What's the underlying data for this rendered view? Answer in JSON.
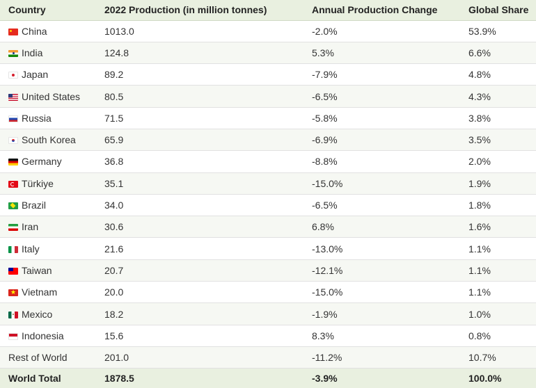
{
  "columns": [
    "Country",
    "2022 Production (in million tonnes)",
    "Annual Production Change",
    "Global Share"
  ],
  "rows": [
    {
      "country": "China",
      "flag": "flag-china",
      "production": "1013.0",
      "change": "-2.0%",
      "share": "53.9%"
    },
    {
      "country": "India",
      "flag": "flag-india",
      "production": "124.8",
      "change": "5.3%",
      "share": "6.6%"
    },
    {
      "country": "Japan",
      "flag": "flag-japan",
      "production": "89.2",
      "change": "-7.9%",
      "share": "4.8%"
    },
    {
      "country": "United States",
      "flag": "flag-us",
      "production": "80.5",
      "change": "-6.5%",
      "share": "4.3%"
    },
    {
      "country": "Russia",
      "flag": "flag-russia",
      "production": "71.5",
      "change": "-5.8%",
      "share": "3.8%"
    },
    {
      "country": "South Korea",
      "flag": "flag-korea",
      "production": "65.9",
      "change": "-6.9%",
      "share": "3.5%"
    },
    {
      "country": "Germany",
      "flag": "flag-germany",
      "production": "36.8",
      "change": "-8.8%",
      "share": "2.0%"
    },
    {
      "country": "Türkiye",
      "flag": "flag-turkiye",
      "production": "35.1",
      "change": "-15.0%",
      "share": "1.9%"
    },
    {
      "country": "Brazil",
      "flag": "flag-brazil",
      "production": "34.0",
      "change": "-6.5%",
      "share": "1.8%"
    },
    {
      "country": "Iran",
      "flag": "flag-iran",
      "production": "30.6",
      "change": "6.8%",
      "share": "1.6%"
    },
    {
      "country": "Italy",
      "flag": "flag-italy",
      "production": "21.6",
      "change": "-13.0%",
      "share": "1.1%"
    },
    {
      "country": "Taiwan",
      "flag": "flag-taiwan",
      "production": "20.7",
      "change": "-12.1%",
      "share": "1.1%"
    },
    {
      "country": "Vietnam",
      "flag": "flag-vietnam",
      "production": "20.0",
      "change": "-15.0%",
      "share": "1.1%"
    },
    {
      "country": "Mexico",
      "flag": "flag-mexico",
      "production": "18.2",
      "change": "-1.9%",
      "share": "1.0%"
    },
    {
      "country": "Indonesia",
      "flag": "flag-indonesia",
      "production": "15.6",
      "change": "8.3%",
      "share": "0.8%"
    },
    {
      "country": "Rest of World",
      "flag": "",
      "production": "201.0",
      "change": "-11.2%",
      "share": "10.7%"
    }
  ],
  "total": {
    "country": "World Total",
    "production": "1878.5",
    "change": "-3.9%",
    "share": "100.0%"
  },
  "colors": {
    "header_bg": "#e9f0e0",
    "stripe_bg": "#f6f8f3",
    "border": "#e1e1e1"
  }
}
